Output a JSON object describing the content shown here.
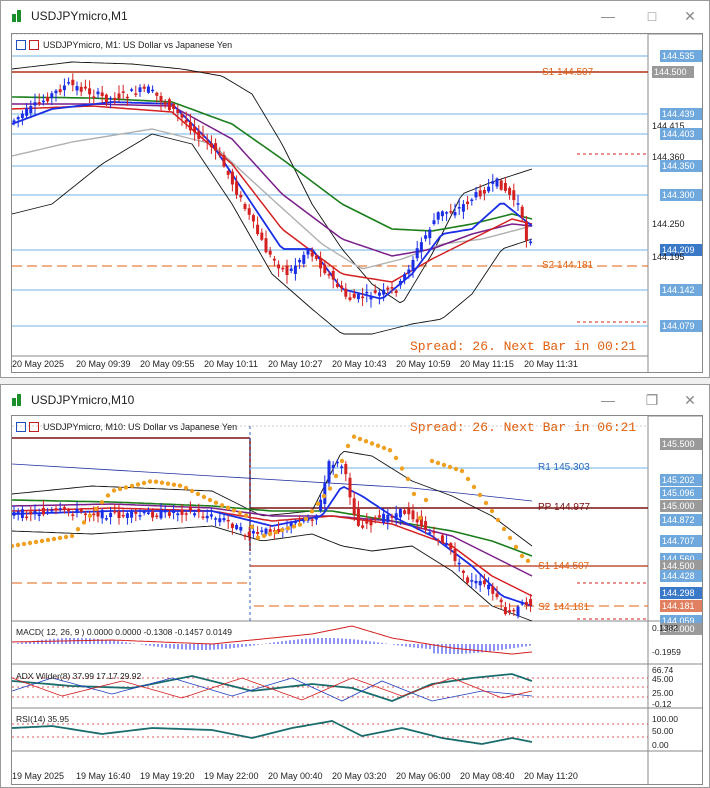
{
  "window1": {
    "title": "USDJPYmicro,M1",
    "header": "USDJPYmicro, M1:  US Dollar vs Japanese Yen",
    "spread": "Spread: 26. Next Bar in 00:21",
    "s1_label": "S1 144.507",
    "s2_label": "S2 144.181",
    "price_labels": [
      "144.535",
      "144.500",
      "144.439",
      "144.415",
      "144.403",
      "144.360",
      "144.350",
      "144.300",
      "144.250",
      "144.209",
      "144.195",
      "144.142",
      "144.079"
    ],
    "time_labels": [
      "20 May 2025",
      "20 May 09:39",
      "20 May 09:55",
      "20 May 10:11",
      "20 May 10:27",
      "20 May 10:43",
      "20 May 10:59",
      "20 May 11:15",
      "20 May 11:31"
    ]
  },
  "window2": {
    "title": "USDJPYmicro,M10",
    "header": "USDJPYmicro, M10:  US Dollar vs Japanese Yen",
    "spread": "Spread: 26. Next Bar in 06:21",
    "r1_label": "R1 145.303",
    "pp_label": "PP 144.977",
    "s1_label": "S1 144.507",
    "s2_label": "S2 144.181",
    "price_labels": [
      "145.500",
      "145.202",
      "145.096",
      "145.000",
      "144.872",
      "144.707",
      "144.560",
      "144.500",
      "144.428",
      "144.298",
      "144.181",
      "144.059",
      "144.000"
    ],
    "macd_label": "MACD( 12, 26, 9 ) 0.0000 0.0000 -0.1308 -0.1457 0.0149",
    "macd_ticks": [
      "0.1382",
      "-0.1959"
    ],
    "adx_label": "ADX Wilder(8) 37.99 17.17 29.92",
    "adx_ticks": [
      "66.74",
      "45.00",
      "25.00",
      "-0.12"
    ],
    "rsi_label": "RSI(14) 35.95",
    "rsi_ticks": [
      "100.00",
      "50.00",
      "0.00"
    ],
    "time_labels": [
      "19 May 2025",
      "19 May 16:40",
      "19 May 19:20",
      "19 May 22:00",
      "20 May 00:40",
      "20 May 03:20",
      "20 May 06:00",
      "20 May 08:40",
      "20 May 11:20"
    ]
  },
  "colors": {
    "blue": "#1a2ee6",
    "red": "#d42020",
    "purple": "#7a1e8a",
    "green": "#1b7d1b",
    "gray": "#b0b0b0",
    "orange": "#f0a020",
    "level": "#e06010",
    "pricebox": "#6fa8dc"
  },
  "icons": [
    "app-icon",
    "minimize-icon",
    "maximize-icon",
    "close-icon"
  ]
}
